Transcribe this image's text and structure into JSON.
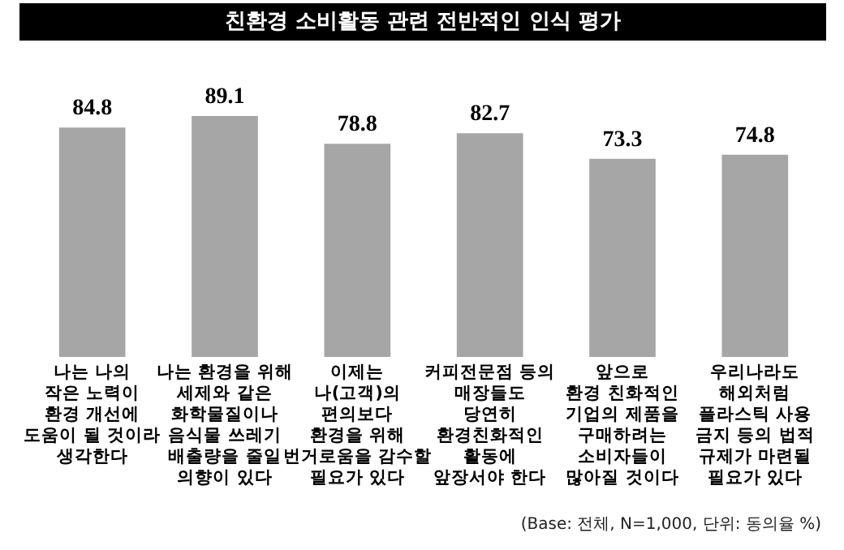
{
  "chart_data": {
    "type": "bar",
    "title": "친환경 소비활동 관련 전반적인 인식 평가",
    "categories": [
      "나는 나의\n작은 노력이\n환경 개선에\n도움이 될 것이라\n생각한다",
      "나는 환경을 위해\n세제와 같은\n화학물질이나\n음식물 쓰레기\n배출량을 줄일\n의향이 있다",
      "이제는\n나(고객)의\n편의보다\n환경을 위해\n번거로움을 감수할\n필요가 있다",
      "커피전문점 등의\n매장들도\n당연히\n환경친화적인\n활동에\n앞장서야 한다",
      "앞으로\n환경 친화적인\n기업의 제품을\n구매하려는\n소비자들이\n많아질 것이다",
      "우리나라도\n해외처럼\n플라스틱 사용\n금지 등의 법적\n규제가 마련될\n필요가 있다"
    ],
    "values": [
      84.8,
      89.1,
      78.8,
      82.7,
      73.3,
      74.8
    ],
    "color": "#a6a6a6",
    "data_labels": true,
    "annotations": [
      "(Base: 전체, N=1,000, 단위: 동의율 %)"
    ]
  }
}
